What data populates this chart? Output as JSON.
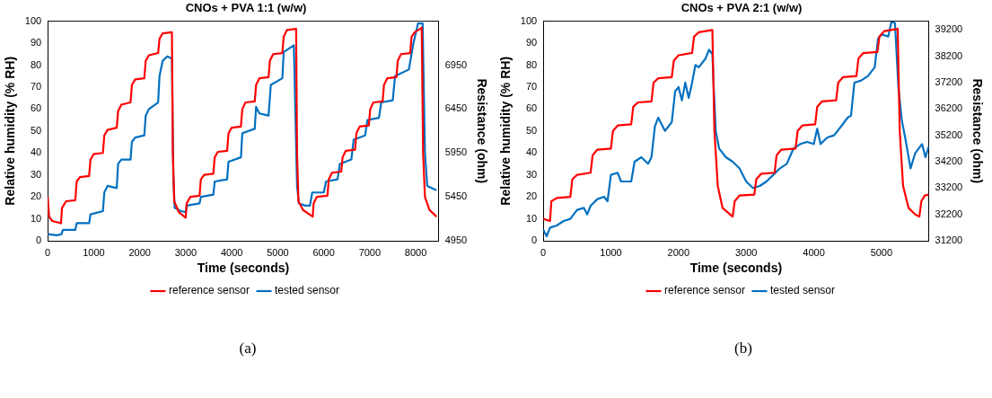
{
  "chart_data": [
    {
      "type": "line",
      "title": "CNOs + PVA 1:1 (w/w)",
      "xlabel": "Time (seconds)",
      "ylabel": "Relative humidity (% RH)",
      "y2label": "Resistance (ohm)",
      "legend": "bottom",
      "grid": false,
      "annotations": [
        "(a)"
      ],
      "xlim": [
        0,
        8500
      ],
      "xticks": [
        0,
        1000,
        2000,
        3000,
        4000,
        5000,
        6000,
        7000,
        8000
      ],
      "ylim": [
        0,
        100
      ],
      "yticks": [
        0,
        10,
        20,
        30,
        40,
        50,
        60,
        70,
        80,
        90,
        100
      ],
      "y2lim": [
        4950,
        7450
      ],
      "y2ticks": [
        4950,
        5450,
        5950,
        6450,
        6950
      ],
      "series": [
        {
          "name": "reference sensor",
          "color": "#ff0000",
          "x": [
            0,
            30,
            100,
            290,
            310,
            400,
            600,
            630,
            700,
            900,
            930,
            1000,
            1200,
            1230,
            1300,
            1500,
            1530,
            1600,
            1800,
            1830,
            1900,
            2100,
            2130,
            2200,
            2400,
            2430,
            2500,
            2700,
            2720,
            2750,
            2850,
            3000,
            3020,
            3100,
            3300,
            3330,
            3400,
            3600,
            3630,
            3700,
            3900,
            3930,
            4000,
            4200,
            4230,
            4300,
            4500,
            4530,
            4600,
            4800,
            4830,
            4900,
            5100,
            5130,
            5200,
            5400,
            5420,
            5450,
            5550,
            5760,
            5780,
            5850,
            6080,
            6110,
            6180,
            6380,
            6410,
            6480,
            6680,
            6710,
            6780,
            6980,
            7010,
            7080,
            7280,
            7310,
            7380,
            7580,
            7610,
            7680,
            7880,
            7910,
            7980,
            8130,
            8160,
            8200,
            8300,
            8450
          ],
          "values": [
            20,
            11,
            9,
            8,
            15,
            18,
            18.5,
            27,
            29,
            29.5,
            37,
            39.5,
            40,
            48,
            50.5,
            51.5,
            59,
            62,
            63,
            71,
            73.5,
            74,
            82,
            84.5,
            85.5,
            92,
            94.5,
            95,
            40,
            18,
            13,
            10.5,
            17,
            20,
            20.5,
            28,
            30,
            30.5,
            38,
            40.5,
            41,
            49,
            51.5,
            52,
            60,
            63,
            63.5,
            71,
            74,
            74.5,
            82,
            85,
            85.5,
            93,
            96,
            96.5,
            40,
            18,
            14,
            11,
            17,
            20,
            20.5,
            28,
            31,
            31.5,
            38,
            41,
            41.5,
            49,
            52,
            52.5,
            60,
            63,
            63.5,
            71,
            74,
            74.5,
            82,
            85,
            85.5,
            93,
            95,
            97,
            40,
            20,
            14,
            11
          ]
        },
        {
          "name": "tested sensor",
          "color": "#0070c0",
          "axis": "y2",
          "x": [
            0,
            200,
            300,
            330,
            600,
            630,
            900,
            930,
            1200,
            1230,
            1300,
            1500,
            1530,
            1600,
            1800,
            1830,
            1900,
            2100,
            2130,
            2200,
            2400,
            2430,
            2500,
            2600,
            2700,
            2730,
            2760,
            2900,
            3000,
            3020,
            3300,
            3330,
            3600,
            3630,
            3900,
            3930,
            4200,
            4230,
            4500,
            4530,
            4600,
            4800,
            4850,
            5100,
            5130,
            5350,
            5420,
            5460,
            5600,
            5700,
            5750,
            6000,
            6050,
            6300,
            6350,
            6600,
            6650,
            6900,
            6950,
            7200,
            7250,
            7500,
            7550,
            7850,
            7950,
            8050,
            8150,
            8200,
            8250,
            8450
          ],
          "values": [
            5025,
            5013,
            5025,
            5075,
            5075,
            5150,
            5150,
            5250,
            5288,
            5500,
            5575,
            5550,
            5825,
            5875,
            5875,
            6075,
            6125,
            6150,
            6375,
            6450,
            6525,
            6825,
            7000,
            7050,
            7025,
            5700,
            5325,
            5288,
            5275,
            5350,
            5375,
            5450,
            5475,
            5625,
            5650,
            5850,
            5900,
            6175,
            6225,
            6475,
            6400,
            6375,
            6725,
            6800,
            7100,
            7175,
            5575,
            5375,
            5350,
            5350,
            5500,
            5500,
            5625,
            5650,
            5825,
            5875,
            6100,
            6150,
            6325,
            6350,
            6525,
            6550,
            6825,
            6900,
            7200,
            7425,
            7425,
            5950,
            5575,
            5525
          ]
        }
      ]
    },
    {
      "type": "line",
      "title": "CNOs + PVA 2:1 (w/w)",
      "xlabel": "Time (seconds)",
      "ylabel": "Relative humidity (% RH)",
      "y2label": "Resistance (ohm)",
      "legend": "bottom",
      "grid": false,
      "annotations": [
        "(b)"
      ],
      "xlim": [
        0,
        5700
      ],
      "xticks": [
        0,
        1000,
        2000,
        3000,
        4000,
        5000
      ],
      "ylim": [
        0,
        100
      ],
      "yticks": [
        0,
        10,
        20,
        30,
        40,
        50,
        60,
        70,
        80,
        90,
        100
      ],
      "y2lim": [
        31200,
        39530
      ],
      "y2ticks": [
        31200,
        32200,
        33200,
        34200,
        35200,
        36200,
        37200,
        38200,
        39200
      ],
      "series": [
        {
          "name": "reference sensor",
          "color": "#ff0000",
          "x": [
            0,
            100,
            120,
            200,
            400,
            430,
            500,
            700,
            730,
            800,
            1000,
            1030,
            1100,
            1300,
            1330,
            1400,
            1600,
            1630,
            1700,
            1900,
            1930,
            2000,
            2200,
            2230,
            2300,
            2500,
            2530,
            2580,
            2650,
            2800,
            2830,
            2900,
            3120,
            3150,
            3220,
            3420,
            3450,
            3520,
            3730,
            3760,
            3830,
            4020,
            4050,
            4120,
            4330,
            4360,
            4430,
            4630,
            4660,
            4730,
            4940,
            4970,
            5040,
            5240,
            5270,
            5320,
            5400,
            5500,
            5560,
            5590,
            5640,
            5700
          ],
          "values": [
            10,
            9,
            18,
            19.5,
            20,
            28,
            30,
            31,
            39,
            41.5,
            42,
            50,
            52.5,
            53,
            61,
            63,
            63.5,
            72,
            74,
            74.5,
            82,
            84.5,
            85.5,
            93,
            95,
            96,
            50,
            25,
            15,
            11,
            18,
            20.6,
            21,
            28,
            30.5,
            31,
            39,
            41.5,
            42,
            50,
            52.5,
            53,
            61,
            63.5,
            64,
            72,
            74.5,
            75,
            83,
            85.5,
            86,
            93,
            95.5,
            96.5,
            50,
            25,
            15,
            12,
            11,
            18,
            20.6,
            21
          ]
        },
        {
          "name": "tested sensor",
          "color": "#0070c0",
          "axis": "y2",
          "x": [
            0,
            50,
            100,
            200,
            300,
            400,
            500,
            600,
            650,
            700,
            800,
            900,
            950,
            1000,
            1100,
            1150,
            1300,
            1350,
            1450,
            1550,
            1600,
            1650,
            1700,
            1800,
            1900,
            1950,
            2000,
            2050,
            2100,
            2150,
            2200,
            2250,
            2300,
            2400,
            2450,
            2500,
            2520,
            2550,
            2600,
            2700,
            2800,
            2900,
            3000,
            3100,
            3200,
            3300,
            3400,
            3500,
            3600,
            3700,
            3800,
            3900,
            4000,
            4050,
            4100,
            4200,
            4300,
            4400,
            4500,
            4550,
            4600,
            4700,
            4800,
            4900,
            4950,
            5000,
            5100,
            5150,
            5200,
            5250,
            5300,
            5350,
            5430,
            5500,
            5600,
            5650,
            5700
          ],
          "values": [
            31620,
            31370,
            31700,
            31780,
            31950,
            32030,
            32370,
            32450,
            32200,
            32530,
            32780,
            32870,
            32700,
            33700,
            33780,
            33450,
            33450,
            34200,
            34370,
            34120,
            34370,
            35530,
            35870,
            35370,
            35700,
            36870,
            37030,
            36530,
            37200,
            36620,
            37200,
            37870,
            37780,
            38120,
            38450,
            38280,
            37030,
            35370,
            34700,
            34370,
            34200,
            33950,
            33450,
            33200,
            33280,
            33450,
            33700,
            33950,
            34120,
            34700,
            34870,
            34950,
            34870,
            35450,
            34870,
            35120,
            35200,
            35530,
            35870,
            35950,
            37200,
            37280,
            37450,
            37780,
            38870,
            39030,
            38950,
            39530,
            39450,
            37030,
            35780,
            35120,
            33950,
            34530,
            34870,
            34370,
            34780
          ]
        }
      ]
    }
  ]
}
